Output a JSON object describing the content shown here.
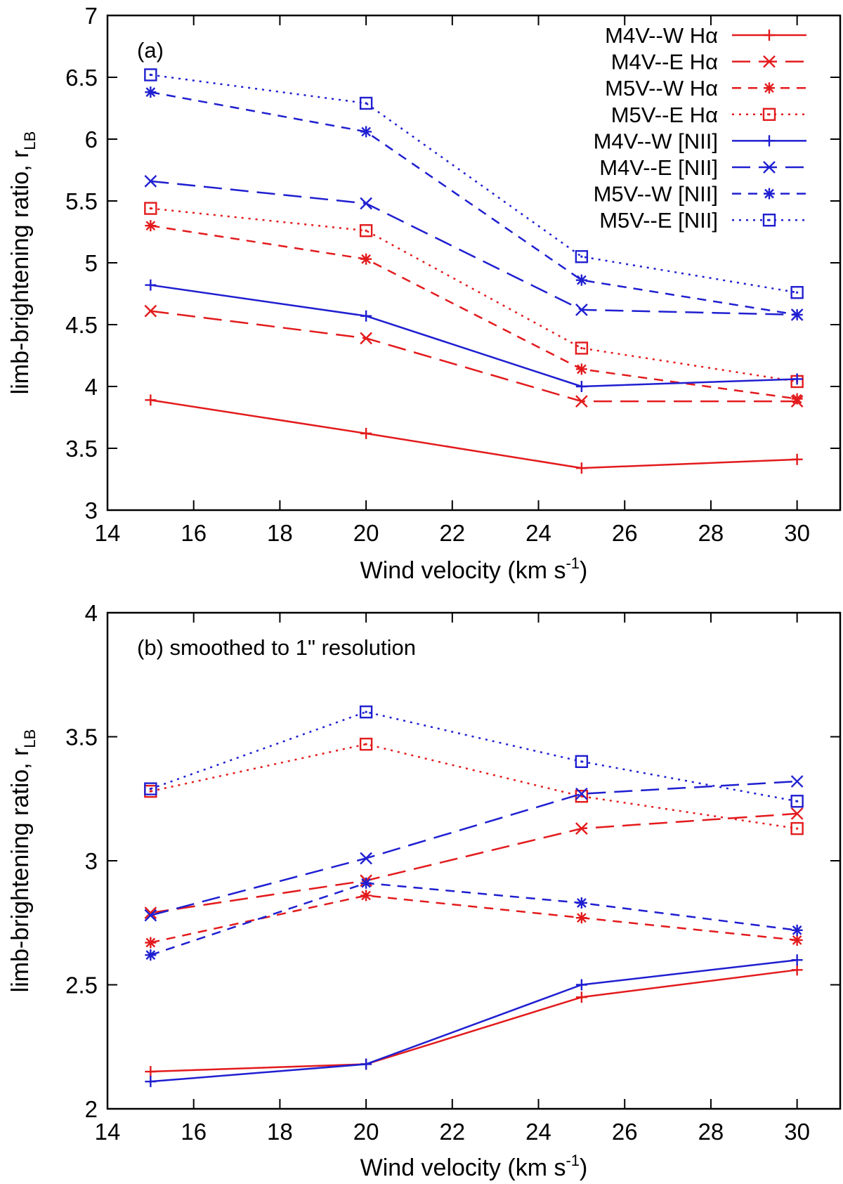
{
  "colors": {
    "red": "#e31a1c",
    "blue": "#1f1fd1",
    "axis": "#000000"
  },
  "legend": [
    {
      "label": "M4V--W Hα",
      "color": "red",
      "dash": "solid",
      "marker": "plus"
    },
    {
      "label": "M4V--E Hα",
      "color": "red",
      "dash": "longdash",
      "marker": "cross"
    },
    {
      "label": "M5V--W Hα",
      "color": "red",
      "dash": "dashed",
      "marker": "star"
    },
    {
      "label": "M5V--E Hα",
      "color": "red",
      "dash": "dotted",
      "marker": "box"
    },
    {
      "label": "M4V--W [NII]",
      "color": "blue",
      "dash": "solid",
      "marker": "plus"
    },
    {
      "label": "M4V--E [NII]",
      "color": "blue",
      "dash": "longdash",
      "marker": "cross"
    },
    {
      "label": "M5V--W [NII]",
      "color": "blue",
      "dash": "dashed",
      "marker": "star"
    },
    {
      "label": "M5V--E [NII]",
      "color": "blue",
      "dash": "dotted",
      "marker": "box"
    }
  ],
  "chart_data": [
    {
      "type": "line",
      "panel_label": "(a)",
      "xlabel_main": "Wind velocity (km s",
      "xlabel_sup": "-1",
      "xlabel_end": ")",
      "ylabel_main": "limb-brightening ratio, r",
      "ylabel_sub": "LB",
      "xlim": [
        14,
        31
      ],
      "ylim": [
        3,
        7
      ],
      "xticks": [
        14,
        16,
        18,
        20,
        22,
        24,
        26,
        28,
        30
      ],
      "yticks": [
        3,
        3.5,
        4,
        4.5,
        5,
        5.5,
        6,
        6.5,
        7
      ],
      "ytick_labels": [
        "3",
        "3.5",
        "4",
        "4.5",
        "5",
        "5.5",
        "6",
        "6.5",
        "7"
      ],
      "show_legend": true,
      "legend_position": "top-right",
      "x": [
        15,
        20,
        25,
        30
      ],
      "series": [
        {
          "name": "M4V--W Hα",
          "values": [
            3.89,
            3.62,
            3.34,
            3.41
          ]
        },
        {
          "name": "M4V--E Hα",
          "values": [
            4.61,
            4.39,
            3.88,
            3.88
          ]
        },
        {
          "name": "M5V--W Hα",
          "values": [
            5.3,
            5.03,
            4.14,
            3.9
          ]
        },
        {
          "name": "M5V--E Hα",
          "values": [
            5.44,
            5.26,
            4.31,
            4.04
          ]
        },
        {
          "name": "M4V--W [NII]",
          "values": [
            4.82,
            4.57,
            4.0,
            4.06
          ]
        },
        {
          "name": "M4V--E [NII]",
          "values": [
            5.66,
            5.48,
            4.62,
            4.58
          ]
        },
        {
          "name": "M5V--W [NII]",
          "values": [
            6.38,
            6.06,
            4.86,
            4.58
          ]
        },
        {
          "name": "M5V--E [NII]",
          "values": [
            6.52,
            6.29,
            5.05,
            4.76
          ]
        }
      ]
    },
    {
      "type": "line",
      "panel_label": "(b) smoothed to 1\" resolution",
      "xlabel_main": "Wind velocity (km s",
      "xlabel_sup": "-1",
      "xlabel_end": ")",
      "ylabel_main": "limb-brightening ratio, r",
      "ylabel_sub": "LB",
      "xlim": [
        14,
        31
      ],
      "ylim": [
        2,
        4
      ],
      "xticks": [
        14,
        16,
        18,
        20,
        22,
        24,
        26,
        28,
        30
      ],
      "yticks": [
        2,
        2.5,
        3,
        3.5,
        4
      ],
      "ytick_labels": [
        "2",
        "2.5",
        "3",
        "3.5",
        "4"
      ],
      "show_legend": false,
      "x": [
        15,
        20,
        25,
        30
      ],
      "series": [
        {
          "name": "M4V--W Hα",
          "values": [
            2.15,
            2.18,
            2.45,
            2.56
          ]
        },
        {
          "name": "M4V--E Hα",
          "values": [
            2.79,
            2.92,
            3.13,
            3.19
          ]
        },
        {
          "name": "M5V--W Hα",
          "values": [
            2.67,
            2.86,
            2.77,
            2.68
          ]
        },
        {
          "name": "M5V--E Hα",
          "values": [
            3.28,
            3.47,
            3.26,
            3.13
          ]
        },
        {
          "name": "M4V--W [NII]",
          "values": [
            2.11,
            2.18,
            2.5,
            2.6
          ]
        },
        {
          "name": "M4V--E [NII]",
          "values": [
            2.78,
            3.01,
            3.27,
            3.32
          ]
        },
        {
          "name": "M5V--W [NII]",
          "values": [
            2.62,
            2.91,
            2.83,
            2.72
          ]
        },
        {
          "name": "M5V--E [NII]",
          "values": [
            3.29,
            3.6,
            3.4,
            3.24
          ]
        }
      ]
    }
  ]
}
